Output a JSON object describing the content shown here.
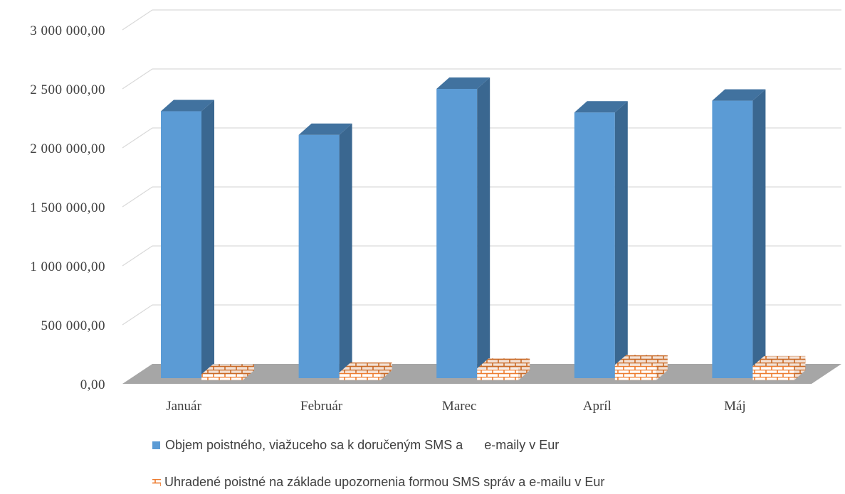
{
  "chart_data": {
    "type": "bar",
    "categories": [
      "Január",
      "Február",
      "Marec",
      "Apríl",
      "Máj"
    ],
    "series": [
      {
        "name": "Objem poistného, viažuceho sa k doručeným SMS a      e-maily v Eur",
        "values": [
          2310000,
          2110000,
          2500000,
          2300000,
          2400000
        ],
        "color": "#5b9bd5",
        "pattern": "solid"
      },
      {
        "name": "Uhradené poistné na základe upozornenia formou SMS správ a e-mailu v Eur",
        "values": [
          250000,
          265000,
          300000,
          330000,
          320000
        ],
        "color": "#ed7d31",
        "pattern": "brick"
      }
    ],
    "y_ticks": [
      "0,00",
      "500 000,00",
      "1 000 000,00",
      "1 500 000,00",
      "2 000 000,00",
      "2 500 000,00",
      "3 000 000,00"
    ],
    "ylim": [
      0,
      3000000
    ],
    "grid": true,
    "legend": "bottom",
    "style": "3d-column"
  }
}
